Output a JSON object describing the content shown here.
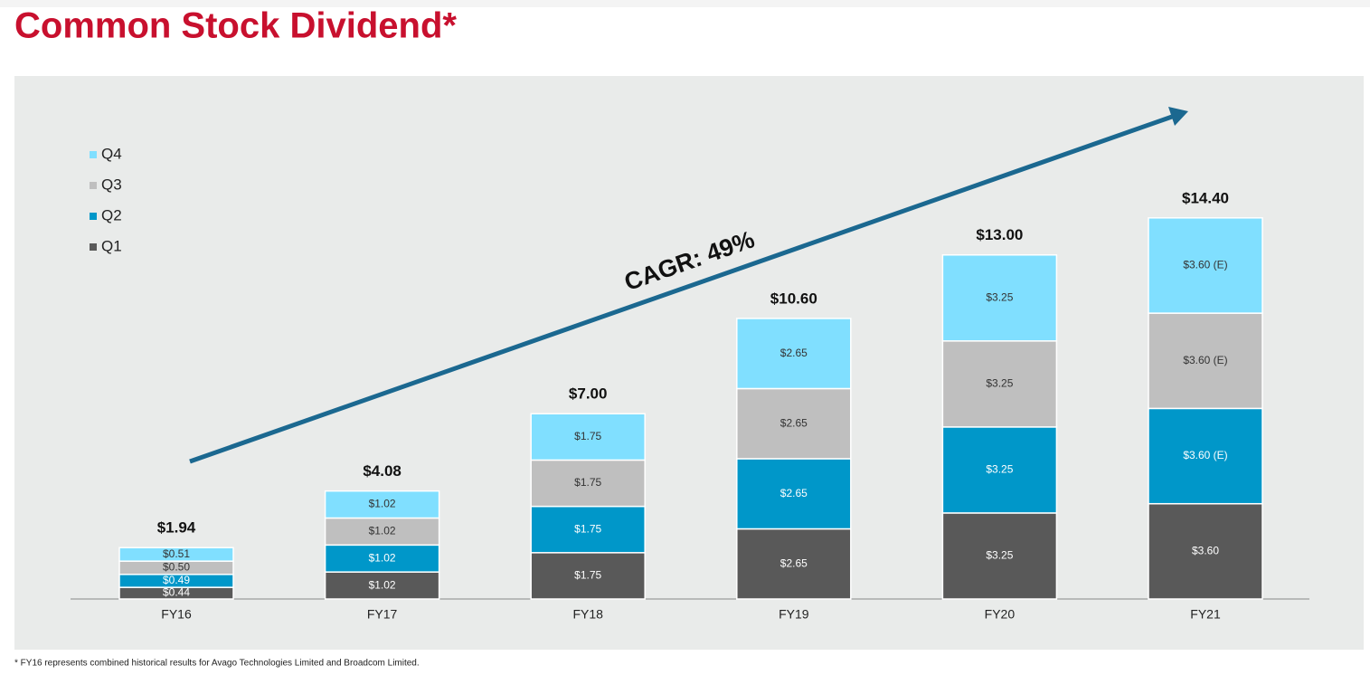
{
  "chart_data": {
    "type": "stacked_bar",
    "title": "Common Stock Dividend*",
    "categories": [
      "FY16",
      "FY17",
      "FY18",
      "FY19",
      "FY20",
      "FY21"
    ],
    "series": [
      {
        "name": "Q1",
        "color": "#595959",
        "values": [
          0.44,
          1.02,
          1.75,
          2.65,
          3.25,
          3.6
        ],
        "value_labels": [
          "$0.44",
          "$1.02",
          "$1.75",
          "$2.65",
          "$3.25",
          "$3.60"
        ]
      },
      {
        "name": "Q2",
        "color": "#0097c9",
        "values": [
          0.49,
          1.02,
          1.75,
          2.65,
          3.25,
          3.6
        ],
        "value_labels": [
          "$0.49",
          "$1.02",
          "$1.75",
          "$2.65",
          "$3.25",
          "$3.60 (E)"
        ]
      },
      {
        "name": "Q3",
        "color": "#bfbfbf",
        "values": [
          0.5,
          1.02,
          1.75,
          2.65,
          3.25,
          3.6
        ],
        "value_labels": [
          "$0.50",
          "$1.02",
          "$1.75",
          "$2.65",
          "$3.25",
          "$3.60 (E)"
        ]
      },
      {
        "name": "Q4",
        "color": "#80dfff",
        "values": [
          0.51,
          1.02,
          1.75,
          2.65,
          3.25,
          3.6
        ],
        "value_labels": [
          "$0.51",
          "$1.02",
          "$1.75",
          "$2.65",
          "$3.25",
          "$3.60 (E)"
        ]
      }
    ],
    "totals": {
      "values": [
        1.94,
        4.08,
        7.0,
        10.6,
        13.0,
        14.4
      ],
      "value_labels": [
        "$1.94",
        "$4.08",
        "$7.00",
        "$10.60",
        "$13.00",
        "$14.40"
      ]
    },
    "annotation": "CAGR: 49%",
    "footnote": "* FY16 represents combined historical results for Avago Technologies Limited and Broadcom Limited."
  }
}
